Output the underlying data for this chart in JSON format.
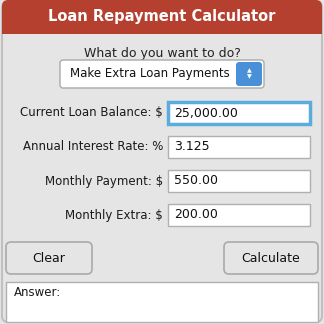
{
  "title": "Loan Repayment Calculator",
  "title_bg": "#b54030",
  "title_color": "#ffffff",
  "bg_color": "#e5e5e5",
  "outer_border_color": "#c0c0c0",
  "subtitle": "What do you want to do?",
  "dropdown_text": "Make Extra Loan Payments",
  "dropdown_bg": "#ffffff",
  "dropdown_border": "#aaaaaa",
  "dropdown_arrow_bg": "#4a90d9",
  "fields": [
    {
      "label": "Current Loan Balance: $",
      "value": "25,000.00",
      "highlight": true
    },
    {
      "label": "Annual Interest Rate: %",
      "value": "3.125",
      "highlight": false
    },
    {
      "label": "Monthly Payment: $",
      "value": "550.00",
      "highlight": false
    },
    {
      "label": "Monthly Extra: $",
      "value": "200.00",
      "highlight": false
    }
  ],
  "field_highlight_color": "#5aacdf",
  "field_border_color": "#b0b0b0",
  "btn_clear": "Clear",
  "btn_calculate": "Calculate",
  "answer_label": "Answer:",
  "label_fontsize": 8.5,
  "title_fontsize": 10.5,
  "subtitle_fontsize": 9.0,
  "btn_fontsize": 9.0,
  "value_fontsize": 9.0,
  "dropdown_fontsize": 8.5
}
